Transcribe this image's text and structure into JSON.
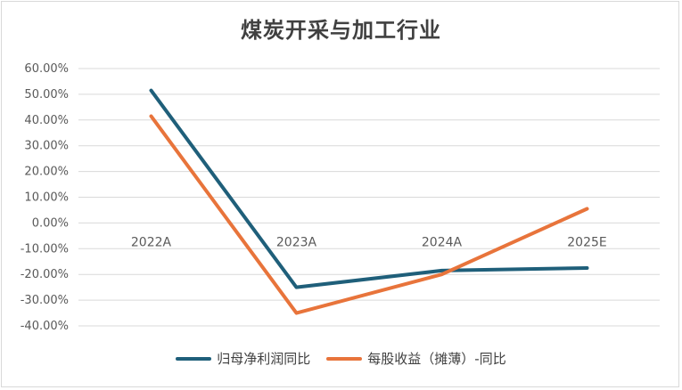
{
  "chart_data": {
    "type": "line",
    "title": "煤炭开采与加工行业",
    "categories": [
      "2022A",
      "2023A",
      "2024A",
      "2025E"
    ],
    "yticks": [
      "60.00%",
      "50.00%",
      "40.00%",
      "30.00%",
      "20.00%",
      "10.00%",
      "0.00%",
      "-10.00%",
      "-20.00%",
      "-30.00%",
      "-40.00%"
    ],
    "ylim": [
      -40,
      60
    ],
    "grid": true,
    "legend_position": "bottom",
    "series": [
      {
        "name": "归母净利润同比",
        "color": "#1f5f7a",
        "values": [
          51.5,
          -25,
          -18.5,
          -17.5
        ]
      },
      {
        "name": "每股收益（摊薄）-同比",
        "color": "#e8743b",
        "values": [
          41.5,
          -35,
          -20,
          5.5
        ]
      }
    ]
  }
}
